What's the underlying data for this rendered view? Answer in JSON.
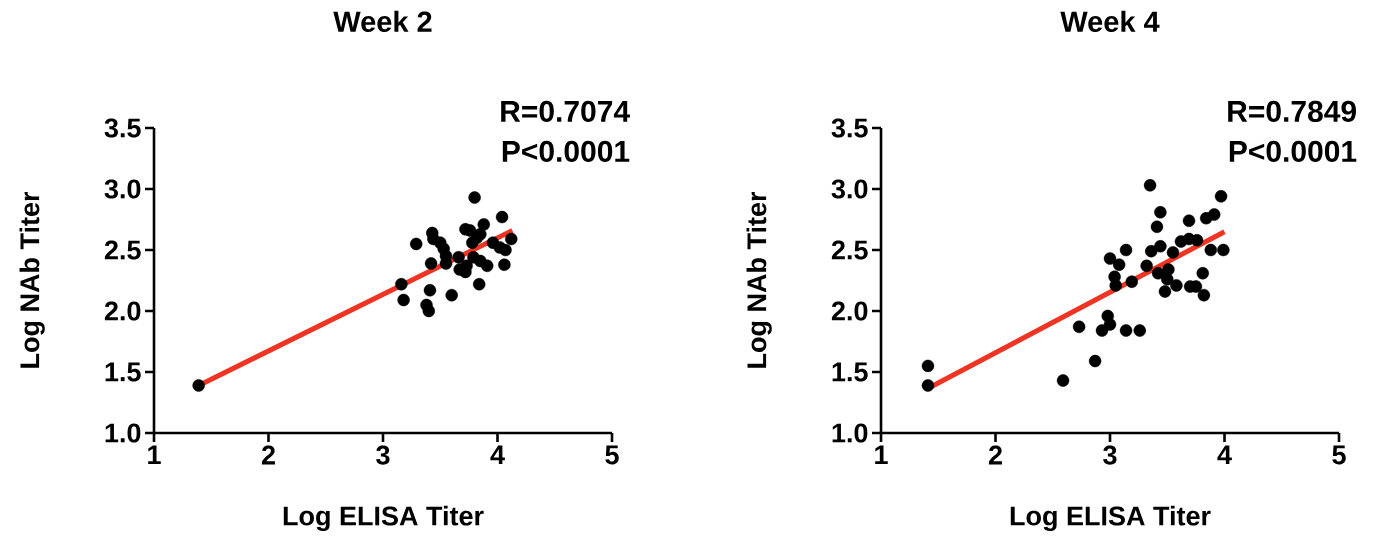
{
  "chart_data": [
    {
      "type": "scatter",
      "title": "Week 2",
      "xlabel": "Log ELISA Titer",
      "ylabel": "Log NAb Titer",
      "xlim": [
        1,
        5
      ],
      "ylim": [
        1,
        3.5
      ],
      "xticks": [
        1,
        2,
        3,
        4,
        5
      ],
      "yticks": [
        {
          "value": 1,
          "label": "1.0"
        },
        {
          "value": 1.5,
          "label": "1.5"
        },
        {
          "value": 2,
          "label": "2.0"
        },
        {
          "value": 2.5,
          "label": "2.5"
        },
        {
          "value": 3,
          "label": "3.0"
        },
        {
          "value": 3.5,
          "label": "3.5"
        }
      ],
      "annotations": [
        "R=0.7074",
        "P<0.0001"
      ],
      "marker": "circle",
      "series": [
        {
          "type": "scatter",
          "color": "#000000",
          "x": [
            1.39,
            3.16,
            3.18,
            3.29,
            3.41,
            3.38,
            3.4,
            3.42,
            3.43,
            3.44,
            3.5,
            3.53,
            3.55,
            3.55,
            3.6,
            3.66,
            3.67,
            3.72,
            3.73,
            3.72,
            3.76,
            3.78,
            3.8,
            3.82,
            3.85,
            3.88,
            3.79,
            3.85,
            3.84,
            3.91,
            3.96,
            4.04,
            4.02,
            4.07,
            4.06,
            4.12
          ],
          "values": [
            1.39,
            2.22,
            2.09,
            2.55,
            2.17,
            2.05,
            2.0,
            2.39,
            2.64,
            2.59,
            2.56,
            2.51,
            2.45,
            2.39,
            2.13,
            2.44,
            2.34,
            2.32,
            2.37,
            2.67,
            2.66,
            2.56,
            2.93,
            2.6,
            2.63,
            2.71,
            2.44,
            2.41,
            2.22,
            2.37,
            2.56,
            2.77,
            2.52,
            2.5,
            2.38,
            2.59
          ]
        },
        {
          "type": "line",
          "color": "#ee3524",
          "marker": "none",
          "x": [
            1.39,
            4.13
          ],
          "values": [
            1.39,
            2.66
          ]
        }
      ]
    },
    {
      "type": "scatter",
      "title": "Week 4",
      "xlabel": "Log ELISA Titer",
      "ylabel": "Log NAb Titer",
      "xlim": [
        1,
        5
      ],
      "ylim": [
        1,
        3.5
      ],
      "xticks": [
        1,
        2,
        3,
        4,
        5
      ],
      "yticks": [
        {
          "value": 1,
          "label": "1.0"
        },
        {
          "value": 1.5,
          "label": "1.5"
        },
        {
          "value": 2,
          "label": "2.0"
        },
        {
          "value": 2.5,
          "label": "2.5"
        },
        {
          "value": 3,
          "label": "3.0"
        },
        {
          "value": 3.5,
          "label": "3.5"
        }
      ],
      "annotations": [
        "R=0.7849",
        "P<0.0001"
      ],
      "marker": "circle",
      "series": [
        {
          "type": "scatter",
          "color": "#000000",
          "x": [
            1.41,
            1.41,
            2.59,
            2.87,
            2.73,
            2.93,
            2.98,
            3.0,
            3.14,
            3.26,
            3.0,
            3.08,
            3.04,
            3.05,
            3.14,
            3.19,
            3.32,
            3.35,
            3.44,
            3.41,
            3.36,
            3.44,
            3.55,
            3.42,
            3.51,
            3.5,
            3.48,
            3.58,
            3.62,
            3.69,
            3.76,
            3.69,
            3.7,
            3.75,
            3.81,
            3.82,
            3.84,
            3.91,
            3.88,
            3.97,
            3.99
          ],
          "values": [
            1.39,
            1.55,
            1.43,
            1.59,
            1.87,
            1.84,
            1.96,
            1.89,
            1.84,
            1.84,
            2.43,
            2.38,
            2.28,
            2.21,
            2.5,
            2.24,
            2.37,
            3.03,
            2.81,
            2.69,
            2.49,
            2.53,
            2.48,
            2.31,
            2.34,
            2.26,
            2.16,
            2.21,
            2.57,
            2.59,
            2.58,
            2.74,
            2.2,
            2.2,
            2.31,
            2.13,
            2.76,
            2.79,
            2.5,
            2.94,
            2.5
          ]
        },
        {
          "type": "line",
          "color": "#ee3524",
          "marker": "none",
          "x": [
            1.4,
            4.0
          ],
          "values": [
            1.36,
            2.65
          ]
        }
      ]
    }
  ]
}
